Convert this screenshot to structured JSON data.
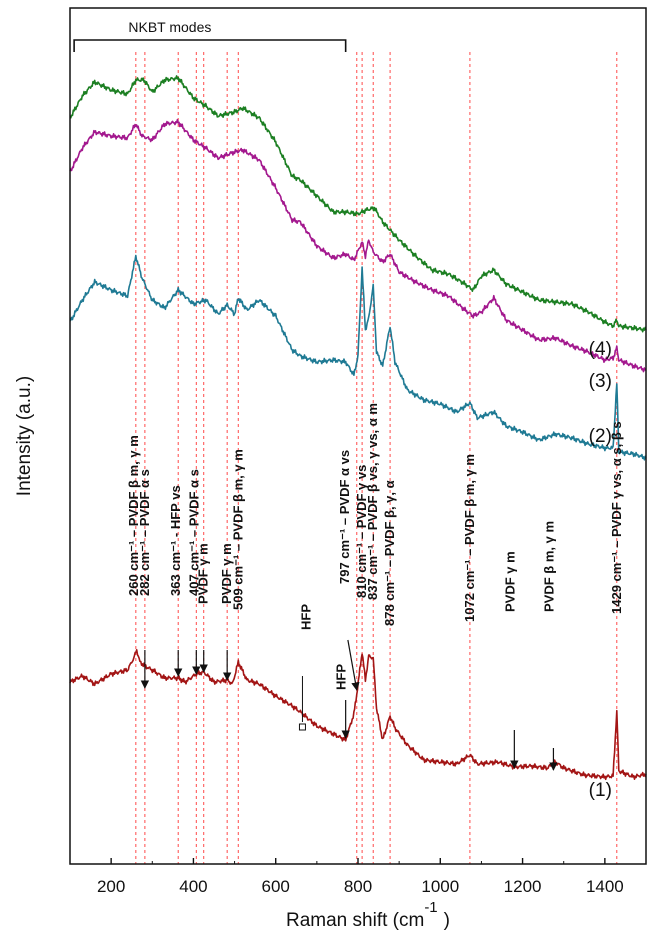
{
  "chart_data": {
    "type": "line",
    "title": "",
    "xlabel": "Raman shift  (cm",
    "xlabel_superscript": "-1",
    "xlabel_close": ")",
    "ylabel": "Intensity  (a.u.)",
    "xlim": [
      100,
      1500
    ],
    "x_ticks": [
      200,
      400,
      600,
      800,
      1000,
      1200,
      1400
    ],
    "x_tick_labels": [
      "200",
      "400",
      "600",
      "800",
      "1000",
      "1200",
      "1400"
    ],
    "y_axis_ticks": "none",
    "grid": false,
    "legend": "none",
    "series": [
      {
        "name": "(1)",
        "color": "#a31515",
        "points": [
          [
            100,
            682
          ],
          [
            130,
            676
          ],
          [
            160,
            684
          ],
          [
            200,
            674
          ],
          [
            240,
            670
          ],
          [
            255,
            658
          ],
          [
            262,
            650
          ],
          [
            270,
            662
          ],
          [
            282,
            666
          ],
          [
            300,
            670
          ],
          [
            330,
            678
          ],
          [
            363,
            678
          ],
          [
            380,
            682
          ],
          [
            407,
            674
          ],
          [
            425,
            672
          ],
          [
            450,
            682
          ],
          [
            482,
            680
          ],
          [
            495,
            684
          ],
          [
            509,
            662
          ],
          [
            530,
            680
          ],
          [
            560,
            684
          ],
          [
            600,
            696
          ],
          [
            640,
            706
          ],
          [
            660,
            712
          ],
          [
            700,
            726
          ],
          [
            740,
            734
          ],
          [
            770,
            740
          ],
          [
            790,
            714
          ],
          [
            797,
            694
          ],
          [
            810,
            652
          ],
          [
            818,
            680
          ],
          [
            826,
            656
          ],
          [
            837,
            658
          ],
          [
            845,
            708
          ],
          [
            860,
            740
          ],
          [
            878,
            716
          ],
          [
            890,
            728
          ],
          [
            920,
            745
          ],
          [
            960,
            760
          ],
          [
            1000,
            762
          ],
          [
            1040,
            764
          ],
          [
            1072,
            755
          ],
          [
            1090,
            764
          ],
          [
            1140,
            762
          ],
          [
            1180,
            767
          ],
          [
            1220,
            766
          ],
          [
            1260,
            768
          ],
          [
            1280,
            762
          ],
          [
            1300,
            768
          ],
          [
            1350,
            775
          ],
          [
            1400,
            777
          ],
          [
            1420,
            776
          ],
          [
            1429,
            712
          ],
          [
            1434,
            771
          ],
          [
            1470,
            777
          ],
          [
            1500,
            774
          ]
        ]
      },
      {
        "name": "(2)",
        "color": "#1f7a94",
        "points": [
          [
            100,
            322
          ],
          [
            130,
            300
          ],
          [
            160,
            282
          ],
          [
            200,
            290
          ],
          [
            240,
            296
          ],
          [
            260,
            256
          ],
          [
            275,
            278
          ],
          [
            300,
            300
          ],
          [
            330,
            308
          ],
          [
            363,
            290
          ],
          [
            400,
            304
          ],
          [
            430,
            300
          ],
          [
            460,
            314
          ],
          [
            482,
            305
          ],
          [
            500,
            314
          ],
          [
            509,
            298
          ],
          [
            530,
            310
          ],
          [
            560,
            300
          ],
          [
            600,
            316
          ],
          [
            640,
            350
          ],
          [
            660,
            356
          ],
          [
            700,
            362
          ],
          [
            740,
            360
          ],
          [
            770,
            362
          ],
          [
            790,
            375
          ],
          [
            800,
            356
          ],
          [
            810,
            268
          ],
          [
            818,
            330
          ],
          [
            826,
            318
          ],
          [
            837,
            286
          ],
          [
            845,
            352
          ],
          [
            860,
            366
          ],
          [
            878,
            326
          ],
          [
            890,
            362
          ],
          [
            920,
            390
          ],
          [
            960,
            400
          ],
          [
            1000,
            404
          ],
          [
            1040,
            412
          ],
          [
            1072,
            403
          ],
          [
            1090,
            418
          ],
          [
            1130,
            412
          ],
          [
            1160,
            426
          ],
          [
            1200,
            432
          ],
          [
            1240,
            440
          ],
          [
            1280,
            434
          ],
          [
            1320,
            438
          ],
          [
            1360,
            444
          ],
          [
            1400,
            448
          ],
          [
            1420,
            448
          ],
          [
            1429,
            384
          ],
          [
            1434,
            452
          ],
          [
            1470,
            454
          ],
          [
            1500,
            458
          ]
        ]
      },
      {
        "name": "(3)",
        "color": "#a3188e",
        "points": [
          [
            100,
            172
          ],
          [
            130,
            148
          ],
          [
            160,
            132
          ],
          [
            200,
            136
          ],
          [
            240,
            138
          ],
          [
            260,
            124
          ],
          [
            275,
            136
          ],
          [
            300,
            140
          ],
          [
            330,
            124
          ],
          [
            363,
            122
          ],
          [
            400,
            140
          ],
          [
            430,
            148
          ],
          [
            460,
            158
          ],
          [
            500,
            152
          ],
          [
            520,
            150
          ],
          [
            560,
            160
          ],
          [
            600,
            188
          ],
          [
            640,
            220
          ],
          [
            660,
            222
          ],
          [
            700,
            246
          ],
          [
            740,
            258
          ],
          [
            770,
            254
          ],
          [
            790,
            260
          ],
          [
            810,
            242
          ],
          [
            818,
            256
          ],
          [
            826,
            240
          ],
          [
            837,
            252
          ],
          [
            860,
            262
          ],
          [
            878,
            254
          ],
          [
            900,
            272
          ],
          [
            940,
            282
          ],
          [
            980,
            290
          ],
          [
            1020,
            296
          ],
          [
            1060,
            310
          ],
          [
            1080,
            316
          ],
          [
            1100,
            312
          ],
          [
            1130,
            298
          ],
          [
            1160,
            320
          ],
          [
            1200,
            330
          ],
          [
            1240,
            340
          ],
          [
            1280,
            338
          ],
          [
            1320,
            346
          ],
          [
            1360,
            352
          ],
          [
            1400,
            360
          ],
          [
            1420,
            358
          ],
          [
            1429,
            348
          ],
          [
            1434,
            360
          ],
          [
            1470,
            366
          ],
          [
            1500,
            370
          ]
        ]
      },
      {
        "name": "(4)",
        "color": "#1c7f22",
        "points": [
          [
            100,
            118
          ],
          [
            130,
            96
          ],
          [
            160,
            82
          ],
          [
            200,
            90
          ],
          [
            240,
            94
          ],
          [
            260,
            80
          ],
          [
            280,
            80
          ],
          [
            300,
            92
          ],
          [
            330,
            80
          ],
          [
            363,
            78
          ],
          [
            400,
            98
          ],
          [
            430,
            106
          ],
          [
            460,
            116
          ],
          [
            500,
            112
          ],
          [
            520,
            108
          ],
          [
            560,
            118
          ],
          [
            600,
            142
          ],
          [
            640,
            176
          ],
          [
            660,
            180
          ],
          [
            700,
            196
          ],
          [
            740,
            212
          ],
          [
            770,
            212
          ],
          [
            800,
            214
          ],
          [
            820,
            210
          ],
          [
            840,
            208
          ],
          [
            860,
            222
          ],
          [
            900,
            240
          ],
          [
            940,
            256
          ],
          [
            980,
            270
          ],
          [
            1020,
            274
          ],
          [
            1060,
            284
          ],
          [
            1080,
            290
          ],
          [
            1100,
            276
          ],
          [
            1130,
            270
          ],
          [
            1160,
            284
          ],
          [
            1200,
            292
          ],
          [
            1240,
            300
          ],
          [
            1280,
            302
          ],
          [
            1320,
            304
          ],
          [
            1360,
            312
          ],
          [
            1400,
            322
          ],
          [
            1420,
            326
          ],
          [
            1429,
            320
          ],
          [
            1434,
            326
          ],
          [
            1470,
            328
          ],
          [
            1500,
            330
          ]
        ]
      }
    ],
    "reference_lines": {
      "color": "#ff4a4a",
      "x": [
        260,
        282,
        363,
        407,
        425,
        482,
        509,
        797,
        810,
        837,
        878,
        1072,
        1429
      ]
    },
    "bracket": {
      "label": "NKBT modes",
      "x_range": [
        110,
        770
      ]
    },
    "curve_labels": [
      {
        "text": "(1)",
        "x": 1385
      },
      {
        "text": "(2)",
        "x": 1385
      },
      {
        "text": "(3)",
        "x": 1385
      },
      {
        "text": "(4)",
        "x": 1385
      }
    ],
    "peak_annotations": [
      {
        "x": 260,
        "text": "260 cm⁻¹ – PVDF β m, γ m"
      },
      {
        "x": 282,
        "text": "282 cm⁻¹ – PVDF α s"
      },
      {
        "x": 363,
        "text": "363  cm⁻¹ - HFP vs"
      },
      {
        "x": 407,
        "text": "407  cm⁻¹ – PVDF α s"
      },
      {
        "x": 425,
        "text": "PVDF γ m"
      },
      {
        "x": 482,
        "text": "PVDF γ m"
      },
      {
        "x": 509,
        "text": "509 cm⁻¹ – PVDF β m, γ m"
      },
      {
        "x": 797,
        "text": "797 cm⁻¹  –  PVDF α vs"
      },
      {
        "x": 810,
        "text": "810 cm⁻¹ – PVDF γ vs"
      },
      {
        "x": 837,
        "text": "837 cm⁻¹ – PVDF β vs, γ vs, α m"
      },
      {
        "x": 878,
        "text": "878  cm⁻¹ – PVDF β, γ, α"
      },
      {
        "x": 1072,
        "text": "1072 cm⁻¹ – PVDF β m, γ m"
      },
      {
        "x": 1180,
        "text": "PVDF γ m"
      },
      {
        "x": 1275,
        "text": "PVDF β m, γ m"
      },
      {
        "x": 1429,
        "text": "1429 cm⁻¹ – PVDF γ vs, α s, β s"
      },
      {
        "x": 665,
        "text": "HFP"
      },
      {
        "x": 770,
        "text": "HFP"
      }
    ]
  }
}
